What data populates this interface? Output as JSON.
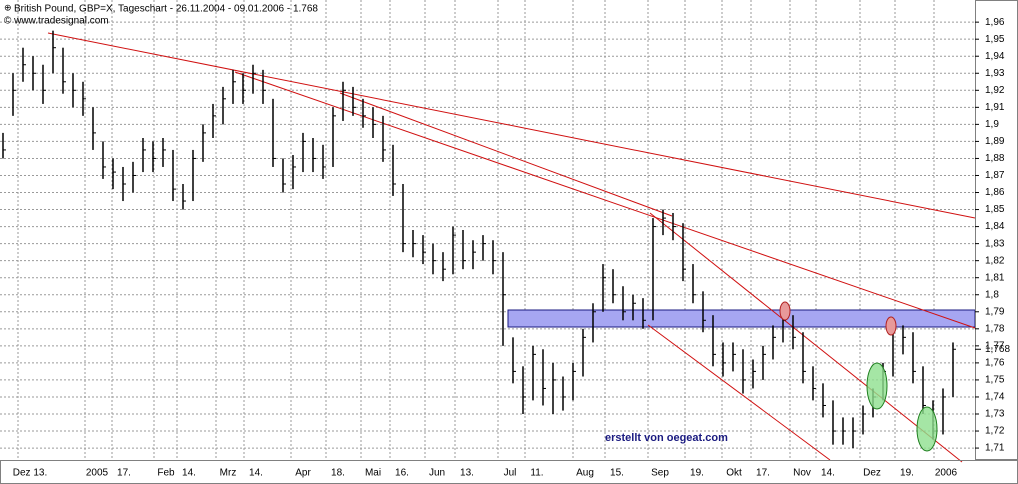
{
  "chart_data": {
    "type": "ohlc",
    "title": "British Pound, GBP=X, Tageschart - 26.11.2004 - 09.01.2006 - 1.768",
    "subtitle": "© www.tradesignal.com",
    "annotation": "erstellt von oegeat.com",
    "color": "#000000",
    "close": [
      1.885,
      1.92,
      1.935,
      1.93,
      1.92,
      1.945,
      1.925,
      1.92,
      1.915,
      1.895,
      1.875,
      1.872,
      1.865,
      1.87,
      1.885,
      1.88,
      1.885,
      1.862,
      1.855,
      1.88,
      1.895,
      1.905,
      1.915,
      1.925,
      1.92,
      1.93,
      1.92,
      1.88,
      1.865,
      1.875,
      1.89,
      1.88,
      1.875,
      1.905,
      1.92,
      1.91,
      1.905,
      1.9,
      1.885,
      1.865,
      1.83,
      1.83,
      1.825,
      1.82,
      1.815,
      1.835,
      1.82,
      1.825,
      1.83,
      1.82,
      1.8,
      1.755,
      1.74,
      1.765,
      1.745,
      1.75,
      1.74,
      1.755,
      1.775,
      1.79,
      1.81,
      1.8,
      1.79,
      1.795,
      1.785,
      1.84,
      1.845,
      1.84,
      1.815,
      1.8,
      1.785,
      1.765,
      1.76,
      1.765,
      1.75,
      1.755,
      1.765,
      1.775,
      1.785,
      1.775,
      1.755,
      1.745,
      1.735,
      1.72,
      1.72,
      1.72,
      1.73,
      1.74,
      1.755,
      1.78,
      1.775,
      1.755,
      1.735,
      1.72,
      1.74,
      1.768
    ],
    "high": [
      1.895,
      1.93,
      1.945,
      1.94,
      1.935,
      1.955,
      1.945,
      1.93,
      1.925,
      1.91,
      1.89,
      1.88,
      1.875,
      1.878,
      1.892,
      1.89,
      1.892,
      1.885,
      1.865,
      1.885,
      1.9,
      1.912,
      1.922,
      1.932,
      1.93,
      1.935,
      1.932,
      1.915,
      1.88,
      1.882,
      1.895,
      1.892,
      1.888,
      1.91,
      1.925,
      1.922,
      1.915,
      1.91,
      1.905,
      1.888,
      1.865,
      1.838,
      1.835,
      1.83,
      1.825,
      1.84,
      1.838,
      1.832,
      1.835,
      1.832,
      1.825,
      1.775,
      1.758,
      1.77,
      1.768,
      1.76,
      1.752,
      1.76,
      1.78,
      1.795,
      1.818,
      1.815,
      1.805,
      1.8,
      1.798,
      1.845,
      1.85,
      1.848,
      1.842,
      1.818,
      1.802,
      1.788,
      1.772,
      1.772,
      1.768,
      1.762,
      1.77,
      1.782,
      1.79,
      1.788,
      1.778,
      1.758,
      1.748,
      1.738,
      1.728,
      1.728,
      1.735,
      1.745,
      1.76,
      1.785,
      1.782,
      1.778,
      1.758,
      1.738,
      1.745,
      1.772
    ],
    "low": [
      1.88,
      1.905,
      1.925,
      1.92,
      1.912,
      1.93,
      1.918,
      1.91,
      1.905,
      1.885,
      1.868,
      1.862,
      1.855,
      1.86,
      1.872,
      1.872,
      1.875,
      1.855,
      1.85,
      1.855,
      1.878,
      1.892,
      1.9,
      1.912,
      1.912,
      1.918,
      1.912,
      1.875,
      1.86,
      1.862,
      1.872,
      1.872,
      1.868,
      1.875,
      1.902,
      1.905,
      1.898,
      1.892,
      1.878,
      1.858,
      1.825,
      1.822,
      1.818,
      1.812,
      1.808,
      1.812,
      1.815,
      1.815,
      1.82,
      1.812,
      1.77,
      1.748,
      1.73,
      1.738,
      1.735,
      1.73,
      1.732,
      1.738,
      1.752,
      1.772,
      1.79,
      1.795,
      1.785,
      1.785,
      1.78,
      1.785,
      1.835,
      1.832,
      1.808,
      1.795,
      1.778,
      1.758,
      1.752,
      1.755,
      1.742,
      1.745,
      1.75,
      1.762,
      1.772,
      1.768,
      1.748,
      1.738,
      1.728,
      1.712,
      1.712,
      1.71,
      1.718,
      1.728,
      1.738,
      1.752,
      1.765,
      1.748,
      1.73,
      1.715,
      1.718,
      1.74
    ],
    "last_price": 1.768,
    "last_price_label": "1,768",
    "xlim": [
      -0.3,
      97.2
    ],
    "xticks": [
      {
        "value": 2.7,
        "label": "Dez 13."
      },
      {
        "value": 9.4,
        "label": "2005"
      },
      {
        "value": 12.1,
        "label": "17."
      },
      {
        "value": 16.3,
        "label": "Feb"
      },
      {
        "value": 18.6,
        "label": "14."
      },
      {
        "value": 22.5,
        "label": "Mrz"
      },
      {
        "value": 25.3,
        "label": "14."
      },
      {
        "value": 30,
        "label": "Apr"
      },
      {
        "value": 33.5,
        "label": "18."
      },
      {
        "value": 37,
        "label": "Mai"
      },
      {
        "value": 39.9,
        "label": "16."
      },
      {
        "value": 43.4,
        "label": "Jun"
      },
      {
        "value": 46.4,
        "label": "13."
      },
      {
        "value": 50.7,
        "label": "Jul"
      },
      {
        "value": 53.4,
        "label": "11."
      },
      {
        "value": 58.2,
        "label": "Aug"
      },
      {
        "value": 61.4,
        "label": "15."
      },
      {
        "value": 65.7,
        "label": "Sep"
      },
      {
        "value": 69.4,
        "label": "19."
      },
      {
        "value": 73.1,
        "label": "Okt"
      },
      {
        "value": 76,
        "label": "17."
      },
      {
        "value": 79.9,
        "label": "Nov"
      },
      {
        "value": 82.5,
        "label": "14."
      },
      {
        "value": 86.9,
        "label": "Dez"
      },
      {
        "value": 90.4,
        "label": "19."
      },
      {
        "value": 94.3,
        "label": "2006"
      }
    ],
    "ylim": [
      1.703,
      1.973
    ],
    "yticks": [
      {
        "value": 1.71,
        "label": "1,71"
      },
      {
        "value": 1.72,
        "label": "1,72"
      },
      {
        "value": 1.73,
        "label": "1,73"
      },
      {
        "value": 1.74,
        "label": "1,74"
      },
      {
        "value": 1.75,
        "label": "1,75"
      },
      {
        "value": 1.76,
        "label": "1,76"
      },
      {
        "value": 1.77,
        "label": "1,77"
      },
      {
        "value": 1.78,
        "label": "1,78"
      },
      {
        "value": 1.79,
        "label": "1,79"
      },
      {
        "value": 1.8,
        "label": "1,8"
      },
      {
        "value": 1.81,
        "label": "1,81"
      },
      {
        "value": 1.82,
        "label": "1,82"
      },
      {
        "value": 1.83,
        "label": "1,83"
      },
      {
        "value": 1.84,
        "label": "1,84"
      },
      {
        "value": 1.85,
        "label": "1,85"
      },
      {
        "value": 1.86,
        "label": "1,86"
      },
      {
        "value": 1.87,
        "label": "1,87"
      },
      {
        "value": 1.88,
        "label": "1,88"
      },
      {
        "value": 1.89,
        "label": "1,89"
      },
      {
        "value": 1.9,
        "label": "1,9"
      },
      {
        "value": 1.91,
        "label": "1,91"
      },
      {
        "value": 1.92,
        "label": "1,92"
      },
      {
        "value": 1.93,
        "label": "1,93"
      },
      {
        "value": 1.94,
        "label": "1,94"
      },
      {
        "value": 1.95,
        "label": "1,95"
      },
      {
        "value": 1.96,
        "label": "1,96"
      }
    ],
    "grid": true
  }
}
